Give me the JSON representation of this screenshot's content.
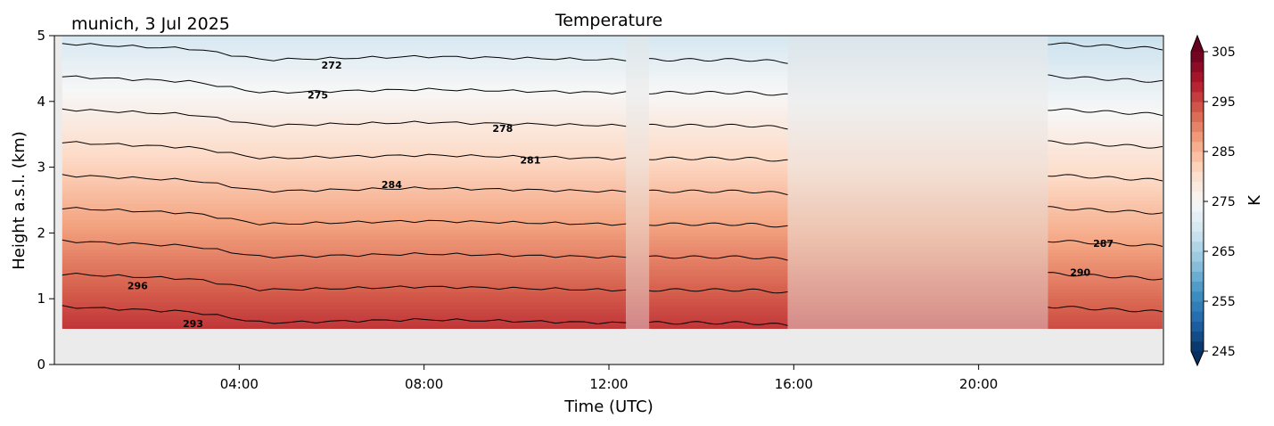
{
  "chart_data": {
    "type": "heatmap",
    "title": "Temperature",
    "station_label": "munich, 3 Jul 2025",
    "xlabel": "Time (UTC)",
    "ylabel": "Height a.s.l. (km)",
    "x_range_hours": [
      0,
      24
    ],
    "ylim": [
      0,
      5
    ],
    "x_ticks": [
      {
        "hour": 4,
        "label": "04:00"
      },
      {
        "hour": 8,
        "label": "08:00"
      },
      {
        "hour": 12,
        "label": "12:00"
      },
      {
        "hour": 16,
        "label": "16:00"
      },
      {
        "hour": 20,
        "label": "20:00"
      }
    ],
    "y_ticks": [
      {
        "value": 0,
        "label": "0"
      },
      {
        "value": 1,
        "label": "1"
      },
      {
        "value": 2,
        "label": "2"
      },
      {
        "value": 3,
        "label": "3"
      },
      {
        "value": 4,
        "label": "4"
      },
      {
        "value": 5,
        "label": "5"
      }
    ],
    "ground_height_km": 0.55,
    "colorbar": {
      "label": "K",
      "range": [
        245,
        305
      ],
      "ticks": [
        {
          "value": 245,
          "label": "245"
        },
        {
          "value": 255,
          "label": "255"
        },
        {
          "value": 265,
          "label": "265"
        },
        {
          "value": 275,
          "label": "275"
        },
        {
          "value": 285,
          "label": "285"
        },
        {
          "value": 295,
          "label": "295"
        },
        {
          "value": 305,
          "label": "305"
        }
      ],
      "colormap": "RdBu_r",
      "extend": "both"
    },
    "data_segments": [
      {
        "start": 0.17,
        "end": 12.37,
        "faded": false
      },
      {
        "start": 12.37,
        "end": 12.87,
        "faded": true
      },
      {
        "start": 12.87,
        "end": 15.87,
        "faded": false
      },
      {
        "start": 15.87,
        "end": 21.5,
        "faded": true
      },
      {
        "start": 21.5,
        "end": 23.98,
        "faded": false
      }
    ],
    "surface_temperature_profile": [
      {
        "hour": 0,
        "value": 298
      },
      {
        "hour": 3,
        "value": 297.5
      },
      {
        "hour": 4.5,
        "value": 296.5
      },
      {
        "hour": 8,
        "value": 296.8
      },
      {
        "hour": 12,
        "value": 296.5
      },
      {
        "hour": 15,
        "value": 296.5
      },
      {
        "hour": 19,
        "value": 295.5
      },
      {
        "hour": 24,
        "value": 294.5
      }
    ],
    "lapse_rate_K_per_km": 6.0,
    "contour_levels": [
      269,
      272,
      275,
      278,
      281,
      284,
      287,
      290,
      293,
      296
    ],
    "contour_labels": [
      {
        "text": "272",
        "hour": 6.0,
        "height": 4.55
      },
      {
        "text": "275",
        "hour": 5.7,
        "height": 4.1
      },
      {
        "text": "278",
        "hour": 9.7,
        "height": 3.59
      },
      {
        "text": "281",
        "hour": 10.3,
        "height": 3.11
      },
      {
        "text": "284",
        "hour": 7.3,
        "height": 2.74
      },
      {
        "text": "296",
        "hour": 1.8,
        "height": 1.2
      },
      {
        "text": "293",
        "hour": 3.0,
        "height": 0.62
      },
      {
        "text": "287",
        "hour": 22.7,
        "height": 1.84
      },
      {
        "text": "290",
        "hour": 22.2,
        "height": 1.4
      }
    ],
    "colors": {
      "missing_background": "#ebebeb",
      "contour_line": "#000000"
    }
  }
}
